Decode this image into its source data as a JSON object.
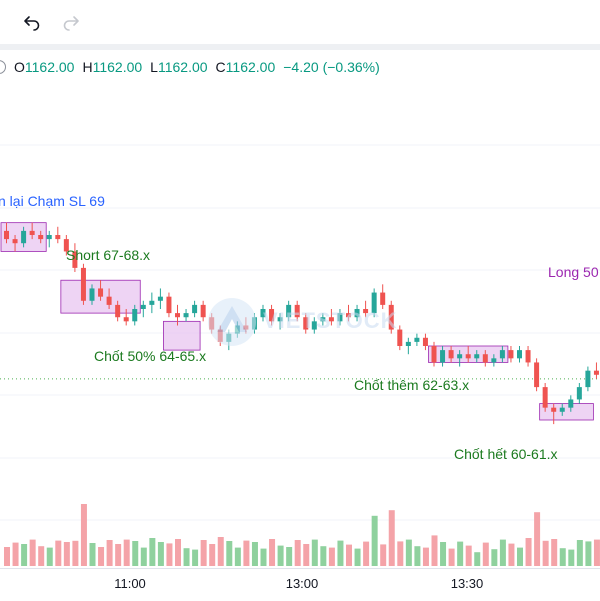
{
  "toolbar": {
    "undo_icon": "undo-icon",
    "redo_icon": "redo-icon"
  },
  "legend": {
    "o_label": "O",
    "o_value": "1162.00",
    "h_label": "H",
    "h_value": "1162.00",
    "l_label": "L",
    "l_value": "1162.00",
    "c_label": "C",
    "c_value": "1162.00",
    "change": "−4.20 (−0.36%)"
  },
  "watermark": "VIETSTOCK",
  "annotations": {
    "sl": "n lại Chạm SL 69",
    "short": "Short 67-68.x",
    "tp50": "Chốt 50% 64-65.x",
    "more": "Chốt thêm 62-63.x",
    "all": "Chốt hết 60-61.x",
    "long": "Long 50"
  },
  "colors": {
    "up": "#26a69a",
    "down": "#ef5350",
    "vol_up": "#8fd19e",
    "vol_down": "#f4a3a8",
    "zone_fill": "#e8c6f0",
    "zone_border": "#9c27b0",
    "anno_green": "#1b7a1f",
    "anno_blue": "#2962ff",
    "anno_purple": "#9c27b0",
    "ref_line": "#4caf50"
  },
  "chart_data": {
    "type": "candlestick",
    "x_ticks": [
      "11:00",
      "13:00",
      "13:30"
    ],
    "reference_level": 1162.0,
    "candles": [
      [
        1169.2,
        1169.6,
        1168.6,
        1168.8
      ],
      [
        1168.8,
        1169.0,
        1168.2,
        1168.6
      ],
      [
        1168.6,
        1169.4,
        1168.4,
        1169.2
      ],
      [
        1169.2,
        1169.6,
        1168.8,
        1169.0
      ],
      [
        1169.0,
        1169.2,
        1168.6,
        1168.8
      ],
      [
        1168.8,
        1169.2,
        1168.4,
        1169.0
      ],
      [
        1169.0,
        1169.4,
        1168.6,
        1168.8
      ],
      [
        1168.8,
        1169.0,
        1168.0,
        1168.2
      ],
      [
        1168.2,
        1168.6,
        1167.2,
        1167.4
      ],
      [
        1167.4,
        1167.6,
        1165.6,
        1165.8
      ],
      [
        1165.8,
        1166.6,
        1165.6,
        1166.4
      ],
      [
        1166.4,
        1166.8,
        1165.8,
        1166.0
      ],
      [
        1166.0,
        1166.4,
        1165.4,
        1165.6
      ],
      [
        1165.6,
        1165.8,
        1164.8,
        1165.0
      ],
      [
        1165.0,
        1165.4,
        1164.6,
        1164.8
      ],
      [
        1164.8,
        1165.6,
        1164.6,
        1165.4
      ],
      [
        1165.4,
        1165.8,
        1165.0,
        1165.6
      ],
      [
        1165.6,
        1166.2,
        1165.2,
        1165.8
      ],
      [
        1165.8,
        1166.4,
        1165.4,
        1166.0
      ],
      [
        1166.0,
        1166.2,
        1165.0,
        1165.2
      ],
      [
        1165.2,
        1165.6,
        1164.6,
        1165.0
      ],
      [
        1165.0,
        1165.4,
        1164.8,
        1165.2
      ],
      [
        1165.2,
        1165.8,
        1165.0,
        1165.6
      ],
      [
        1165.6,
        1165.8,
        1164.8,
        1165.0
      ],
      [
        1165.0,
        1165.2,
        1164.2,
        1164.4
      ],
      [
        1164.4,
        1164.6,
        1163.6,
        1163.8
      ],
      [
        1163.8,
        1164.4,
        1163.4,
        1164.2
      ],
      [
        1164.2,
        1164.8,
        1164.0,
        1164.6
      ],
      [
        1164.6,
        1165.0,
        1164.2,
        1164.4
      ],
      [
        1164.4,
        1165.2,
        1164.2,
        1165.0
      ],
      [
        1165.0,
        1165.6,
        1164.8,
        1165.4
      ],
      [
        1165.4,
        1165.6,
        1164.6,
        1164.8
      ],
      [
        1164.8,
        1165.2,
        1164.4,
        1165.0
      ],
      [
        1165.0,
        1165.8,
        1164.8,
        1165.6
      ],
      [
        1165.6,
        1165.8,
        1164.8,
        1165.0
      ],
      [
        1165.0,
        1165.2,
        1164.2,
        1164.4
      ],
      [
        1164.4,
        1165.0,
        1164.2,
        1164.8
      ],
      [
        1164.8,
        1165.2,
        1164.6,
        1165.0
      ],
      [
        1165.0,
        1165.4,
        1164.6,
        1164.8
      ],
      [
        1164.8,
        1165.4,
        1164.6,
        1165.2
      ],
      [
        1165.2,
        1165.6,
        1164.8,
        1165.0
      ],
      [
        1165.0,
        1165.6,
        1164.8,
        1165.4
      ],
      [
        1165.4,
        1165.8,
        1165.0,
        1165.2
      ],
      [
        1165.2,
        1166.4,
        1165.0,
        1166.2
      ],
      [
        1166.2,
        1166.6,
        1165.4,
        1165.6
      ],
      [
        1165.6,
        1165.8,
        1164.2,
        1164.4
      ],
      [
        1164.4,
        1164.6,
        1163.4,
        1163.6
      ],
      [
        1163.6,
        1164.0,
        1163.2,
        1163.8
      ],
      [
        1163.8,
        1164.2,
        1163.6,
        1164.0
      ],
      [
        1164.0,
        1164.2,
        1163.4,
        1163.6
      ],
      [
        1163.6,
        1163.8,
        1162.6,
        1162.8
      ],
      [
        1162.8,
        1163.6,
        1162.6,
        1163.4
      ],
      [
        1163.4,
        1163.6,
        1162.8,
        1163.0
      ],
      [
        1163.0,
        1163.4,
        1162.6,
        1163.2
      ],
      [
        1163.2,
        1163.6,
        1162.8,
        1163.0
      ],
      [
        1163.0,
        1163.4,
        1162.8,
        1163.2
      ],
      [
        1163.2,
        1163.4,
        1162.6,
        1162.8
      ],
      [
        1162.8,
        1163.2,
        1162.6,
        1163.0
      ],
      [
        1163.0,
        1163.6,
        1162.8,
        1163.4
      ],
      [
        1163.4,
        1163.6,
        1162.8,
        1163.0
      ],
      [
        1163.0,
        1163.6,
        1162.8,
        1163.4
      ],
      [
        1163.4,
        1163.6,
        1162.6,
        1162.8
      ],
      [
        1162.8,
        1163.0,
        1161.4,
        1161.6
      ],
      [
        1161.6,
        1161.8,
        1160.4,
        1160.6
      ],
      [
        1160.6,
        1160.8,
        1159.8,
        1160.4
      ],
      [
        1160.4,
        1160.8,
        1160.2,
        1160.6
      ],
      [
        1160.6,
        1161.2,
        1160.4,
        1161.0
      ],
      [
        1161.0,
        1161.8,
        1160.8,
        1161.6
      ],
      [
        1161.6,
        1162.6,
        1161.4,
        1162.4
      ],
      [
        1162.4,
        1162.8,
        1162.0,
        1162.2
      ]
    ],
    "volume_direction": "per-candle (green up, red down)"
  }
}
